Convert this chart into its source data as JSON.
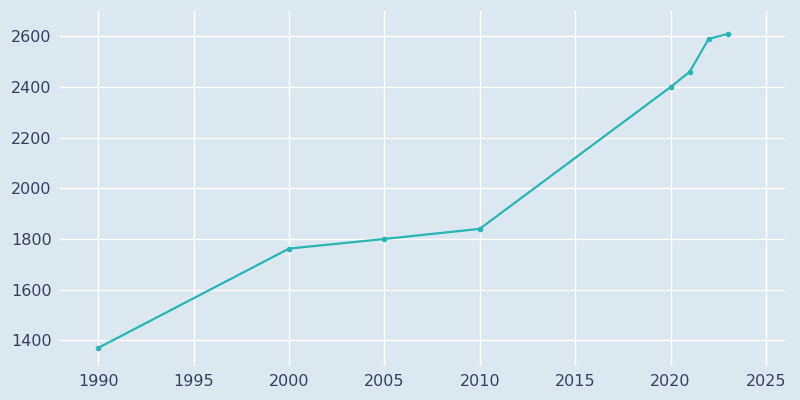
{
  "years": [
    1990,
    2000,
    2005,
    2010,
    2020,
    2021,
    2022,
    2023
  ],
  "population": [
    1370,
    1762,
    1800,
    1840,
    2400,
    2460,
    2590,
    2610
  ],
  "line_color": "#2ab5b5",
  "marker_style": "o",
  "marker_size": 3,
  "line_width": 1.6,
  "background_color": "#dce8f0",
  "plot_bg_color": "#dce8f0",
  "grid_color": "#ffffff",
  "xlabel": "",
  "ylabel": "",
  "xlim": [
    1988,
    2026
  ],
  "ylim": [
    1300,
    2700
  ],
  "xticks": [
    1990,
    1995,
    2000,
    2005,
    2010,
    2015,
    2020,
    2025
  ],
  "yticks": [
    1400,
    1600,
    1800,
    2000,
    2200,
    2400,
    2600
  ],
  "tick_label_color": "#344060",
  "tick_fontsize": 11.5
}
